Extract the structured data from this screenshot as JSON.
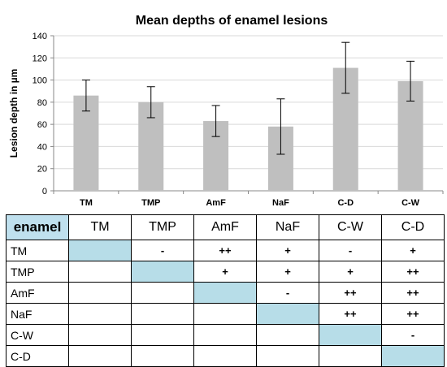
{
  "chart_data": {
    "type": "bar",
    "title": "Mean depths of enamel lesions",
    "xlabel": "",
    "ylabel": "Lesion depth in µm",
    "categories": [
      "TM",
      "TMP",
      "AmF",
      "NaF",
      "C-D",
      "C-W"
    ],
    "series": [
      {
        "values": [
          86,
          80,
          63,
          58,
          111,
          99
        ],
        "error_low": [
          72,
          66,
          49,
          33,
          88,
          81
        ],
        "error_high": [
          100,
          94,
          77,
          83,
          134,
          117
        ],
        "color": "#bfbfbf"
      }
    ],
    "ylim": [
      0,
      140
    ],
    "yticks": [
      0,
      20,
      40,
      60,
      80,
      100,
      120,
      140
    ],
    "grid": true,
    "legend": "none"
  },
  "table": {
    "corner": "enamel",
    "columns": [
      "TM",
      "TMP",
      "AmF",
      "NaF",
      "C-W",
      "C-D"
    ],
    "rows": [
      {
        "label": "TM",
        "cells": [
          "",
          "-",
          "++",
          "+",
          "-",
          "+"
        ]
      },
      {
        "label": "TMP",
        "cells": [
          "",
          "",
          "+",
          "+",
          "+",
          "++"
        ]
      },
      {
        "label": "AmF",
        "cells": [
          "",
          "",
          "",
          "-",
          "++",
          "++"
        ]
      },
      {
        "label": "NaF",
        "cells": [
          "",
          "",
          "",
          "",
          "++",
          "++"
        ]
      },
      {
        "label": "C-W",
        "cells": [
          "",
          "",
          "",
          "",
          "",
          "-"
        ]
      },
      {
        "label": "C-D",
        "cells": [
          "",
          "",
          "",
          "",
          "",
          ""
        ]
      }
    ]
  }
}
